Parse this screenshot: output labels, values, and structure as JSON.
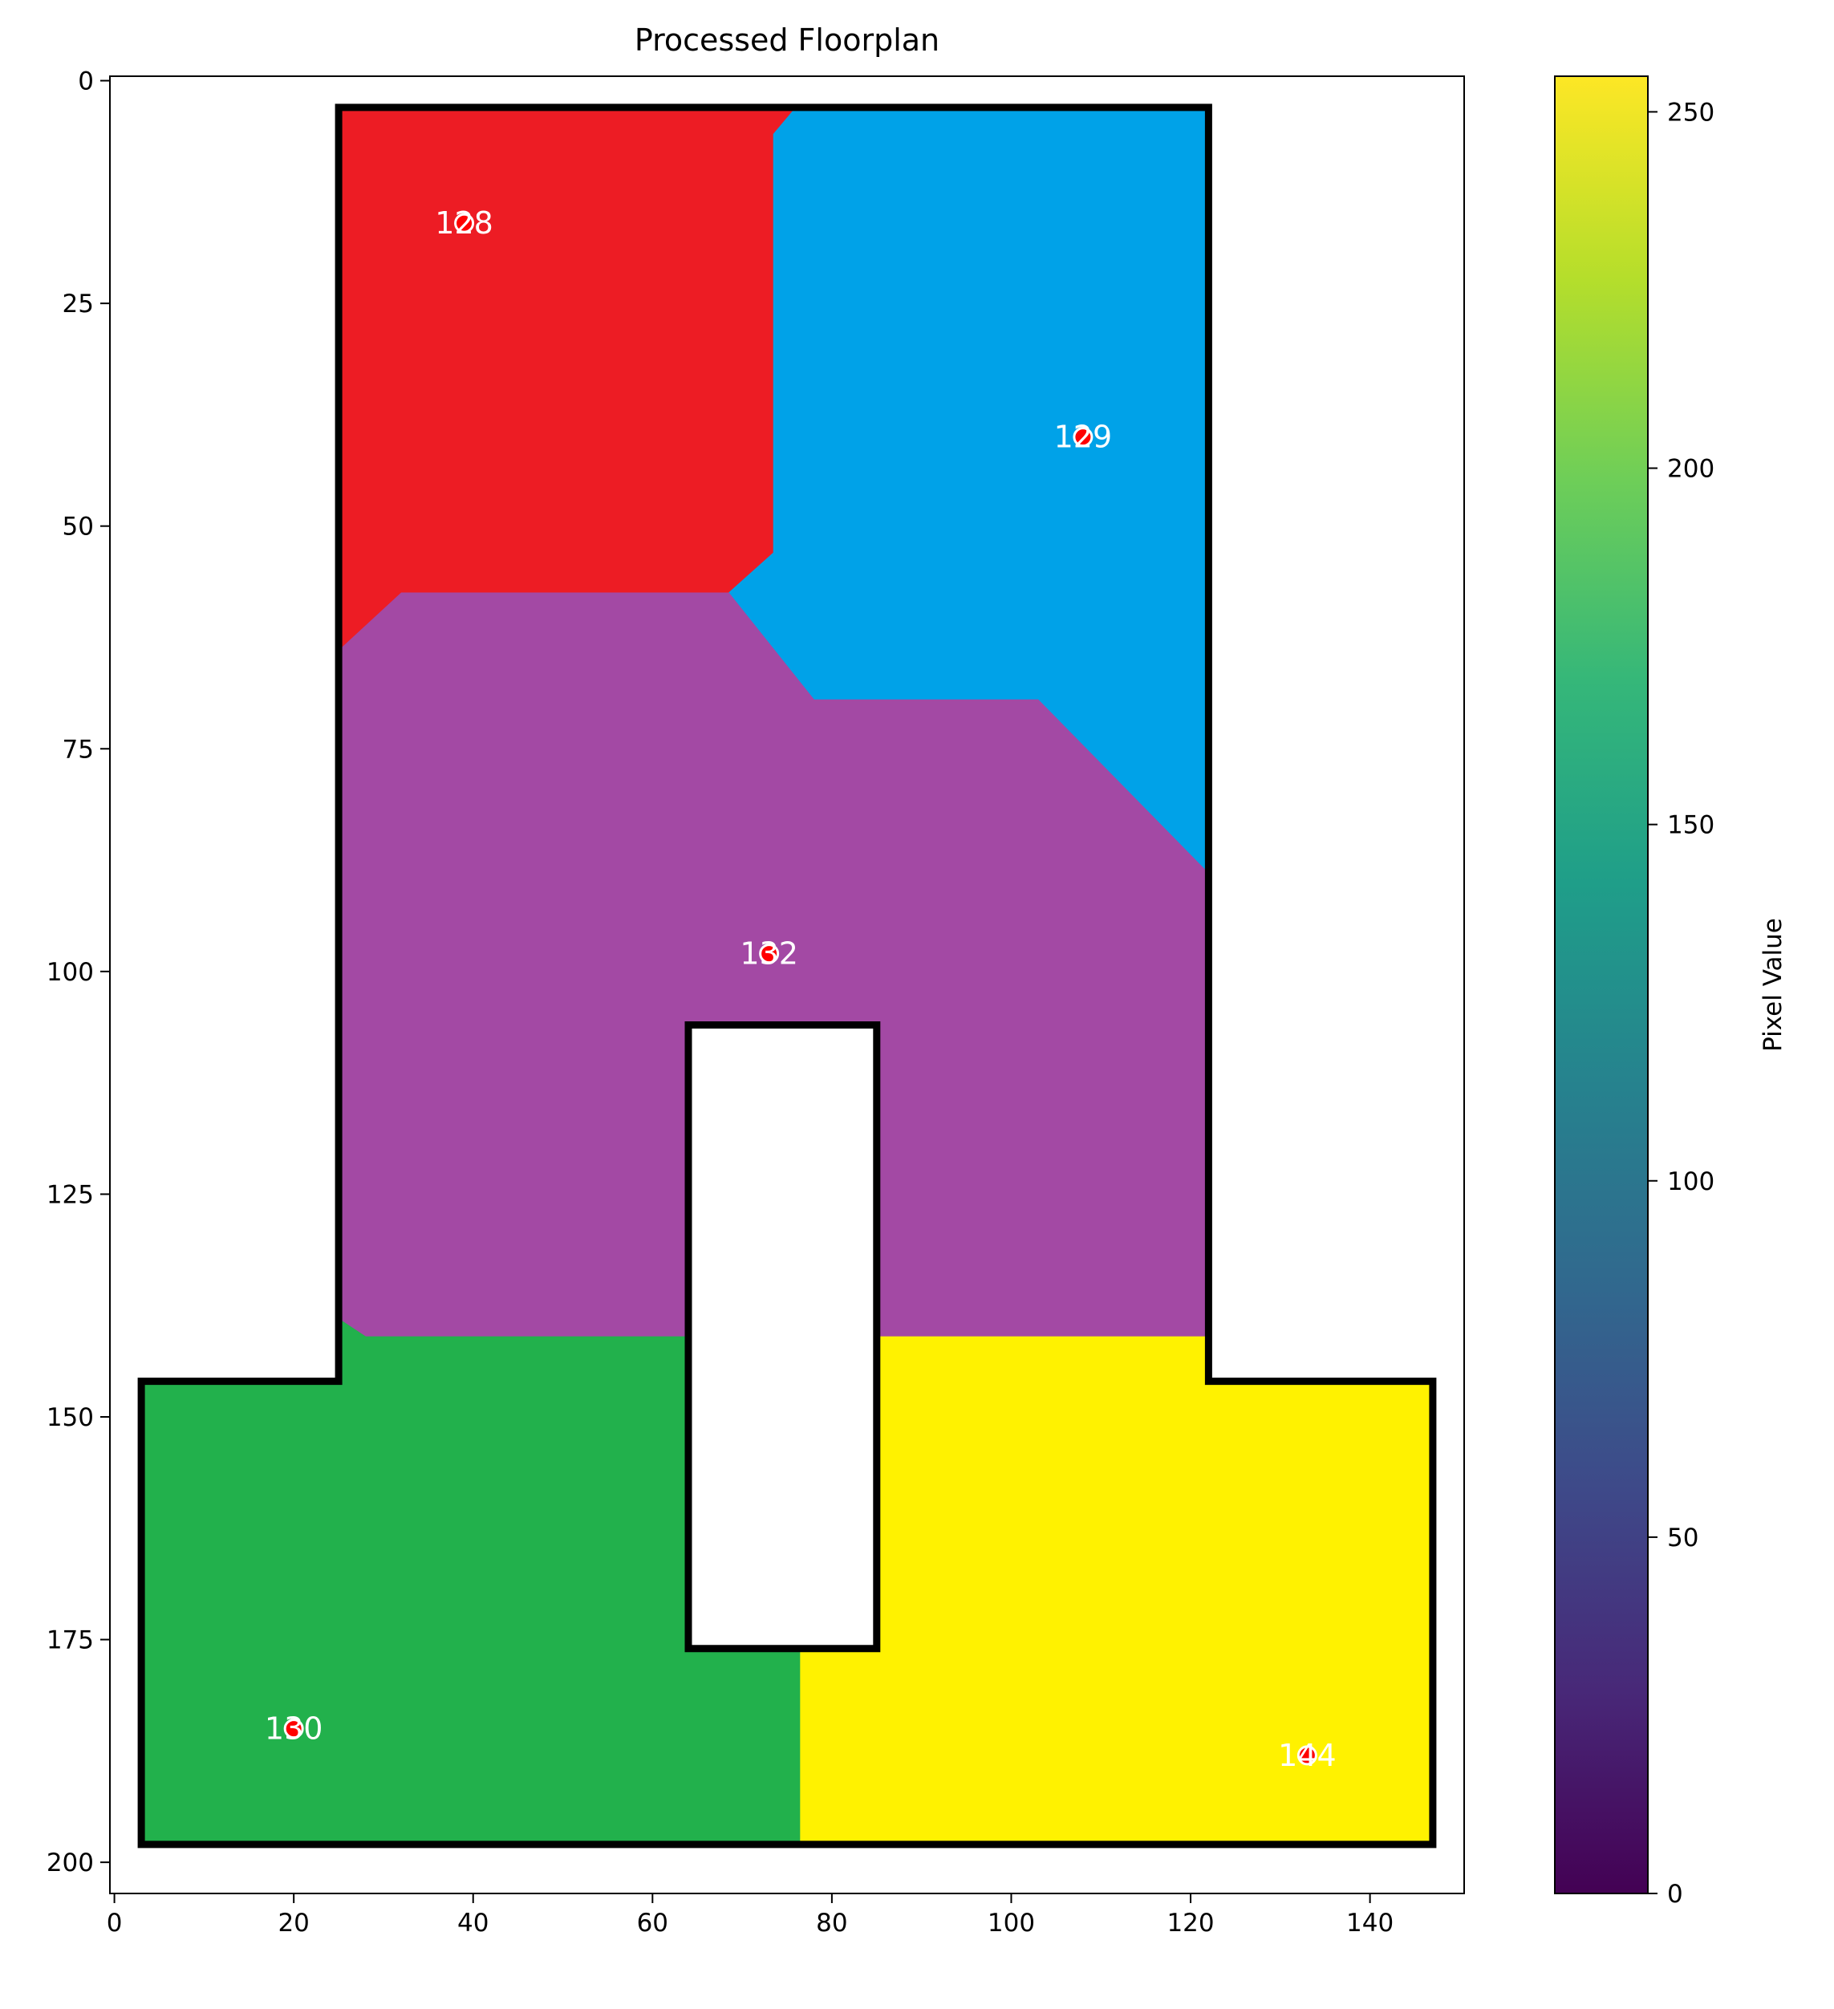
{
  "chart_data": {
    "type": "heatmap",
    "title": "Processed Floorplan",
    "xlabel": "",
    "ylabel": "",
    "xlim": [
      -0.5,
      150.5
    ],
    "ylim": [
      203.5,
      -0.5
    ],
    "x_ticks": [
      0,
      20,
      40,
      60,
      80,
      100,
      120,
      140
    ],
    "y_ticks": [
      0,
      25,
      50,
      75,
      100,
      125,
      150,
      175,
      200
    ],
    "grid": false,
    "colorbar": {
      "label": "Pixel Value",
      "range": [
        0,
        255
      ],
      "ticks": [
        0,
        50,
        100,
        150,
        200,
        250
      ],
      "colormap": "viridis",
      "stops": [
        "#440154",
        "#482878",
        "#3e4989",
        "#31688e",
        "#26828e",
        "#1f9e89",
        "#35b779",
        "#6ece58",
        "#b5de2b",
        "#fde725"
      ]
    },
    "background_color": "#ffffff",
    "wall_color": "#000000",
    "regions": [
      {
        "room": "128",
        "color": "#ed1c24",
        "polygon": [
          [
            25,
            3
          ],
          [
            76,
            3
          ],
          [
            73.5,
            6
          ],
          [
            73.5,
            53
          ],
          [
            68.5,
            57.5
          ],
          [
            32,
            57.5
          ],
          [
            25,
            64
          ]
        ]
      },
      {
        "room": "129",
        "color": "#00a2e8",
        "polygon": [
          [
            76,
            3
          ],
          [
            122,
            3
          ],
          [
            122,
            89
          ],
          [
            103,
            69.5
          ],
          [
            78,
            69.5
          ],
          [
            68.5,
            57.5
          ],
          [
            73.5,
            53
          ],
          [
            73.5,
            6
          ]
        ]
      },
      {
        "room": "132",
        "color": "#a349a4",
        "polygon": [
          [
            25,
            64
          ],
          [
            32,
            57.5
          ],
          [
            68.5,
            57.5
          ],
          [
            78,
            69.5
          ],
          [
            103,
            69.5
          ],
          [
            122,
            89
          ],
          [
            122,
            141
          ],
          [
            85,
            141
          ],
          [
            85,
            106
          ],
          [
            64,
            106
          ],
          [
            64,
            141
          ],
          [
            28,
            141
          ],
          [
            25,
            139
          ]
        ]
      },
      {
        "room": "130",
        "color": "#22b14c",
        "polygon": [
          [
            3,
            146
          ],
          [
            25,
            146
          ],
          [
            25,
            139
          ],
          [
            28,
            141
          ],
          [
            64,
            141
          ],
          [
            64,
            176
          ],
          [
            76.5,
            176
          ],
          [
            76.5,
            198
          ],
          [
            3,
            198
          ]
        ]
      },
      {
        "room": "144",
        "color": "#fff200",
        "polygon": [
          [
            85,
            141
          ],
          [
            122,
            141
          ],
          [
            122,
            146
          ],
          [
            147,
            146
          ],
          [
            147,
            198
          ],
          [
            76.5,
            198
          ],
          [
            76.5,
            176
          ],
          [
            85,
            176
          ]
        ]
      }
    ],
    "walls": [
      [
        [
          25,
          3
        ],
        [
          122,
          3
        ],
        [
          122,
          146
        ],
        [
          147,
          146
        ],
        [
          147,
          198
        ],
        [
          3,
          198
        ],
        [
          3,
          146
        ],
        [
          25,
          146
        ]
      ],
      [
        [
          64,
          106
        ],
        [
          85,
          106
        ],
        [
          85,
          176
        ],
        [
          64,
          176
        ]
      ]
    ],
    "room_points": [
      {
        "label": "128",
        "x": 39,
        "y": 16
      },
      {
        "label": "129",
        "x": 108,
        "y": 40
      },
      {
        "label": "132",
        "x": 73,
        "y": 98
      },
      {
        "label": "130",
        "x": 20,
        "y": 185
      },
      {
        "label": "144",
        "x": 133,
        "y": 188
      }
    ]
  }
}
